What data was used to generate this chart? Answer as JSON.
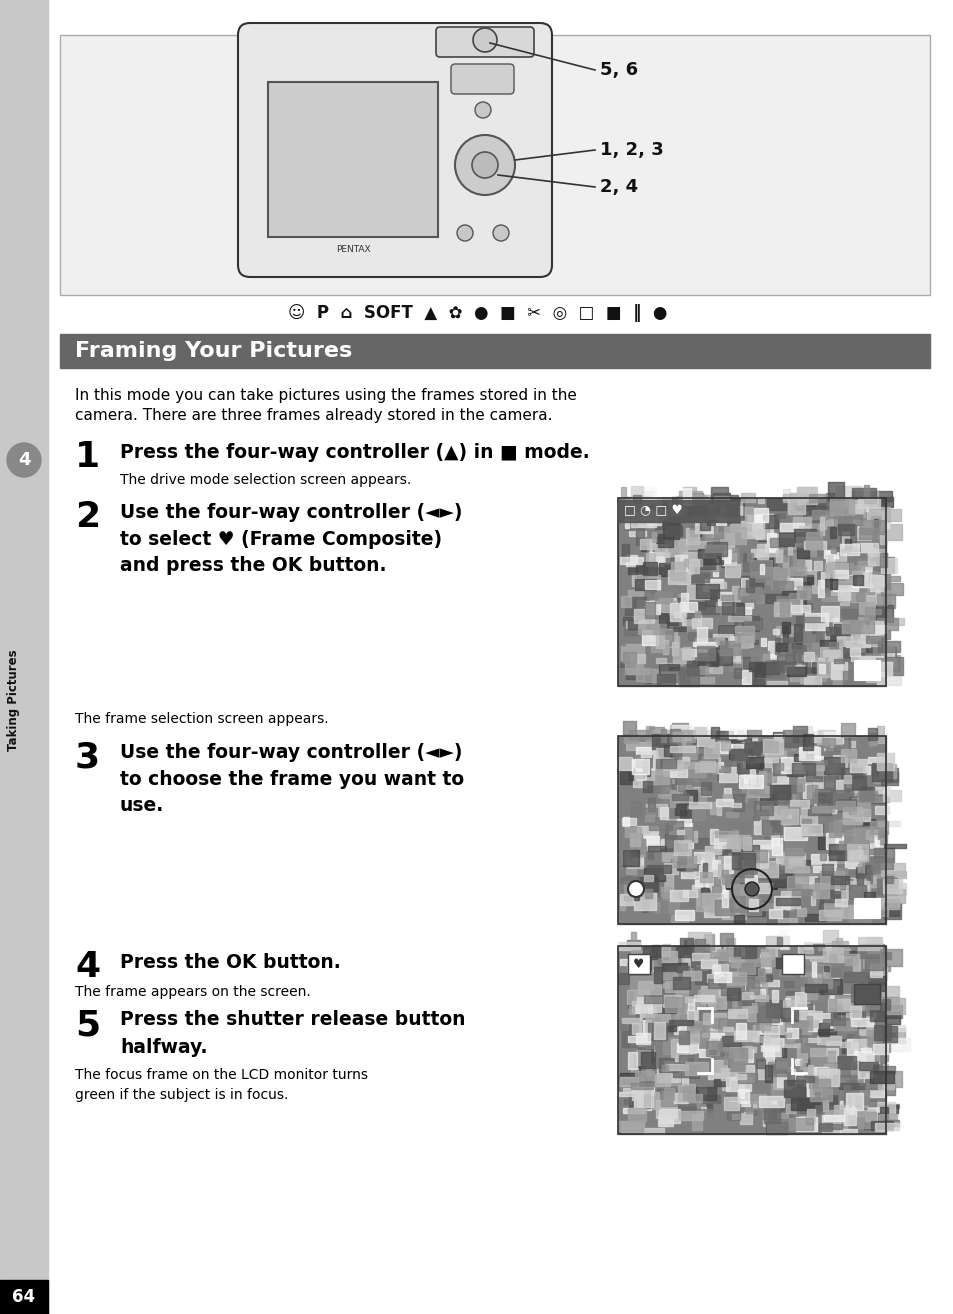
{
  "page_bg": "#ffffff",
  "sidebar_bg": "#c8c8c8",
  "section_title": "Framing Your Pictures",
  "section_title_bg": "#666666",
  "intro_text_l1": "In this mode you can take pictures using the frames stored in the",
  "intro_text_l2": "camera. There are three frames already stored in the camera.",
  "step1_bold": "Press the four-way controller (▲) in ■ mode.",
  "step1_sub": "The drive mode selection screen appears.",
  "step2_l1": "Use the four-way controller (◄►)",
  "step2_l2": "to select ♥ (Frame Composite)",
  "step2_l3": "and press the OK button.",
  "step3_sub": "The frame selection screen appears.",
  "step3_l1": "Use the four-way controller (◄►)",
  "step3_l2": "to choose the frame you want to",
  "step3_l3": "use.",
  "step4_bold": "Press the OK button.",
  "step4_sub": "The frame appears on the screen.",
  "step5_l1": "Press the shutter release button",
  "step5_l2": "halfway.",
  "step5_sub_l1": "The focus frame on the LCD monitor turns",
  "step5_sub_l2": "green if the subject is in focus.",
  "page_number": "64",
  "sidebar_label": "Taking Pictures",
  "sidebar_num": "4",
  "cam_label1": "5, 6",
  "cam_label2": "1, 2, 3",
  "cam_label3": "2, 4"
}
